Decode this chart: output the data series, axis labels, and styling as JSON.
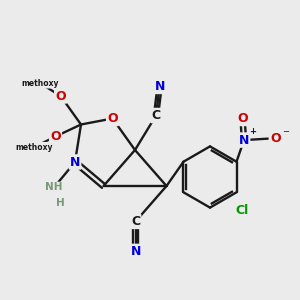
{
  "bg": "#ebebeb",
  "bc": "#1a1a1a",
  "bw": 1.7,
  "N_c": "#0000dd",
  "O_c": "#cc0000",
  "Cl_c": "#009900",
  "H_c": "#779977",
  "fsa": 9,
  "fss": 7.5,
  "fst": 6,
  "C1": [
    4.7,
    5.5
  ],
  "C4": [
    3.65,
    4.3
  ],
  "C5": [
    5.75,
    4.3
  ],
  "OR": [
    3.95,
    6.55
  ],
  "COM": [
    2.9,
    6.35
  ],
  "NR": [
    2.7,
    5.1
  ],
  "CN1C": [
    5.4,
    6.65
  ],
  "CN1N": [
    5.52,
    7.62
  ],
  "CN2C": [
    4.72,
    3.12
  ],
  "CN2N": [
    4.72,
    2.12
  ],
  "OM1": [
    2.22,
    7.3
  ],
  "OM2": [
    2.05,
    5.95
  ],
  "Me1x": 1.55,
  "Me1y": 7.72,
  "Me2x": 1.35,
  "Me2y": 5.6,
  "NH2x": 2.0,
  "NH2y": 4.25,
  "Hx": 2.22,
  "Hy": 3.72,
  "RC": [
    7.2,
    4.6
  ],
  "RR": 1.02
}
